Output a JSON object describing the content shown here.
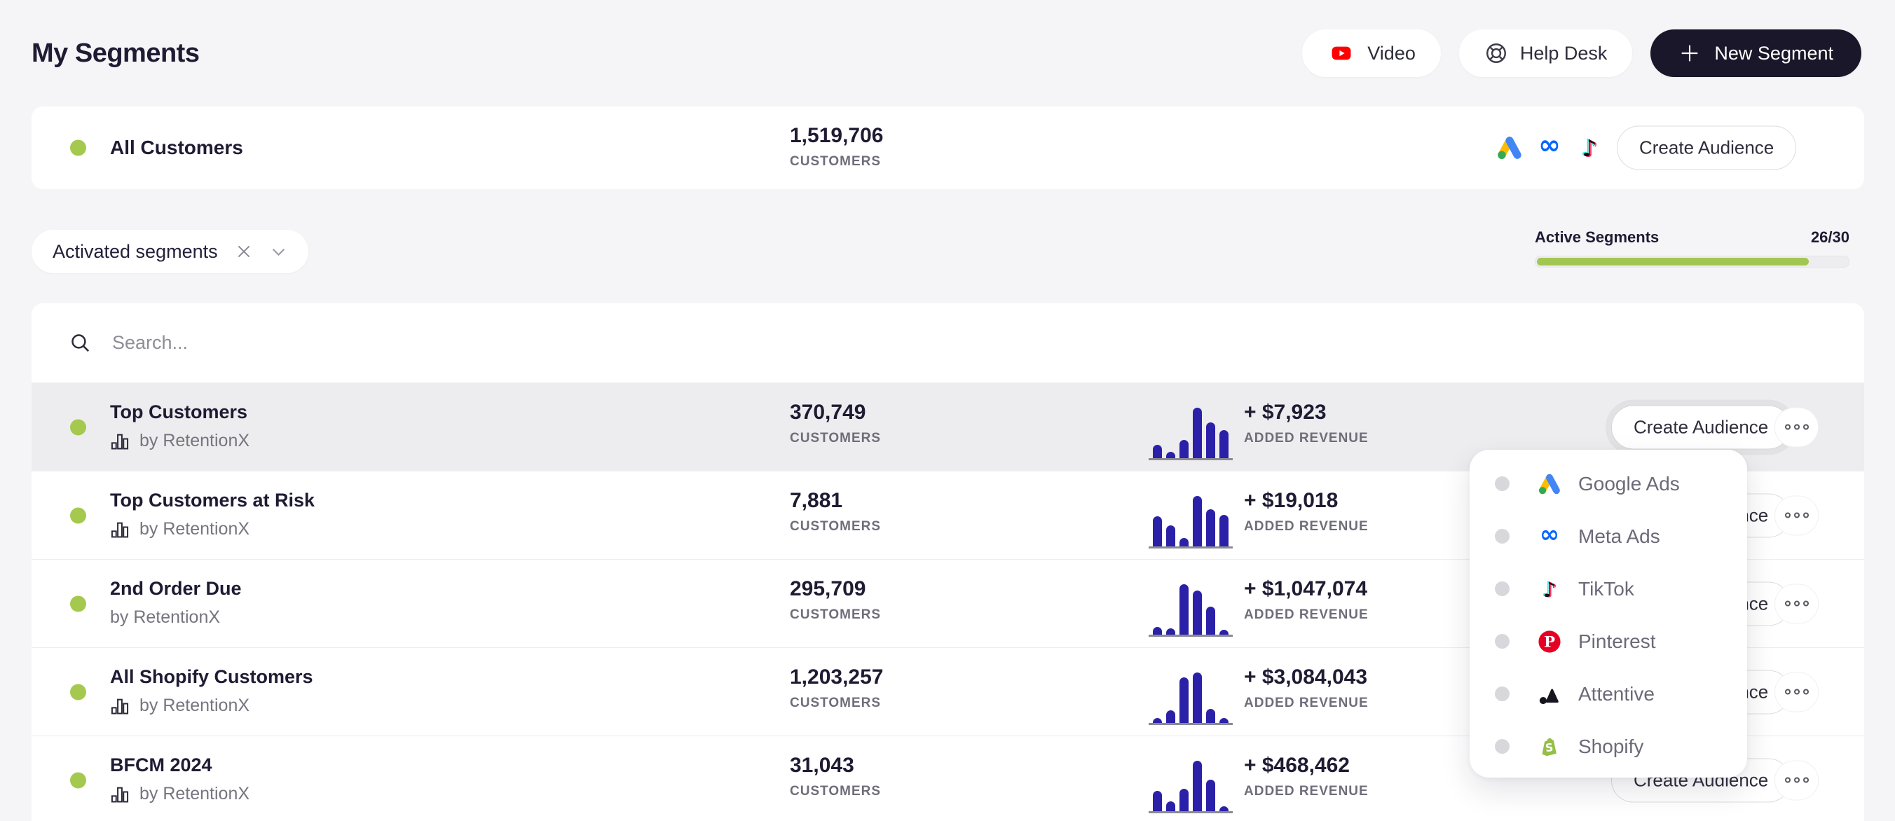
{
  "title": "My Segments",
  "header": {
    "video": "Video",
    "help_desk": "Help Desk",
    "new_segment": "New Segment"
  },
  "all_customers": {
    "name": "All Customers",
    "count": "1,519,706",
    "platforms": [
      "Google Ads",
      "Meta",
      "TikTok"
    ],
    "button": "Create Audience"
  },
  "filter_chip": "Activated segments",
  "quota": {
    "label": "Active Segments",
    "value": "26/30",
    "used": 26,
    "total": 30,
    "percent": 86.7
  },
  "search_placeholder": "Search...",
  "labels": {
    "customers": "CUSTOMERS",
    "added_revenue": "ADDED REVENUE",
    "create_audience": "Create Audience"
  },
  "segments": [
    {
      "name": "Top Customers",
      "byline": "by RetentionX",
      "count": "370,749",
      "revenue": "+ $7,923",
      "bars": [
        26,
        13,
        36,
        100,
        71,
        55
      ],
      "chart_icon": true,
      "highlighted": true,
      "button_focused": true
    },
    {
      "name": "Top Customers at Risk",
      "byline": "by RetentionX",
      "count": "7,881",
      "revenue": "+ $19,018",
      "bars": [
        60,
        42,
        16,
        100,
        73,
        63
      ],
      "chart_icon": true,
      "highlighted": false,
      "button_focused": false
    },
    {
      "name": "2nd Order Due",
      "byline": "by RetentionX",
      "count": "295,709",
      "revenue": "+ $1,047,074",
      "bars": [
        15,
        12,
        100,
        88,
        55,
        8
      ],
      "chart_icon": false,
      "highlighted": false,
      "button_focused": false
    },
    {
      "name": "All Shopify Customers",
      "byline": "by RetentionX",
      "count": "1,203,257",
      "revenue": "+ $3,084,043",
      "bars": [
        10,
        25,
        90,
        100,
        28,
        8
      ],
      "chart_icon": true,
      "highlighted": false,
      "button_focused": false
    },
    {
      "name": "BFCM 2024",
      "byline": "by RetentionX",
      "count": "31,043",
      "revenue": "+ $468,462",
      "bars": [
        40,
        20,
        45,
        100,
        62,
        5
      ],
      "chart_icon": true,
      "highlighted": false,
      "button_focused": false
    }
  ],
  "dropdown": {
    "items": [
      {
        "label": "Google Ads",
        "icon": "google-ads"
      },
      {
        "label": "Meta Ads",
        "icon": "meta-ads"
      },
      {
        "label": "TikTok",
        "icon": "tiktok"
      },
      {
        "label": "Pinterest",
        "icon": "pinterest"
      },
      {
        "label": "Attentive",
        "icon": "attentive"
      },
      {
        "label": "Shopify",
        "icon": "shopify"
      }
    ]
  },
  "colors": {
    "page_bg": "#f5f5f7",
    "accent_green": "#a4c94e",
    "progress_green": "#a3c653",
    "bar_indigo": "#2b21a8",
    "dark_button": "#191729",
    "title_navy": "#1e1b33",
    "youtube_red": "#FF0000",
    "meta_blue": "#0866FF",
    "pinterest_red": "#E60023",
    "shopify_green": "#95BF47"
  }
}
